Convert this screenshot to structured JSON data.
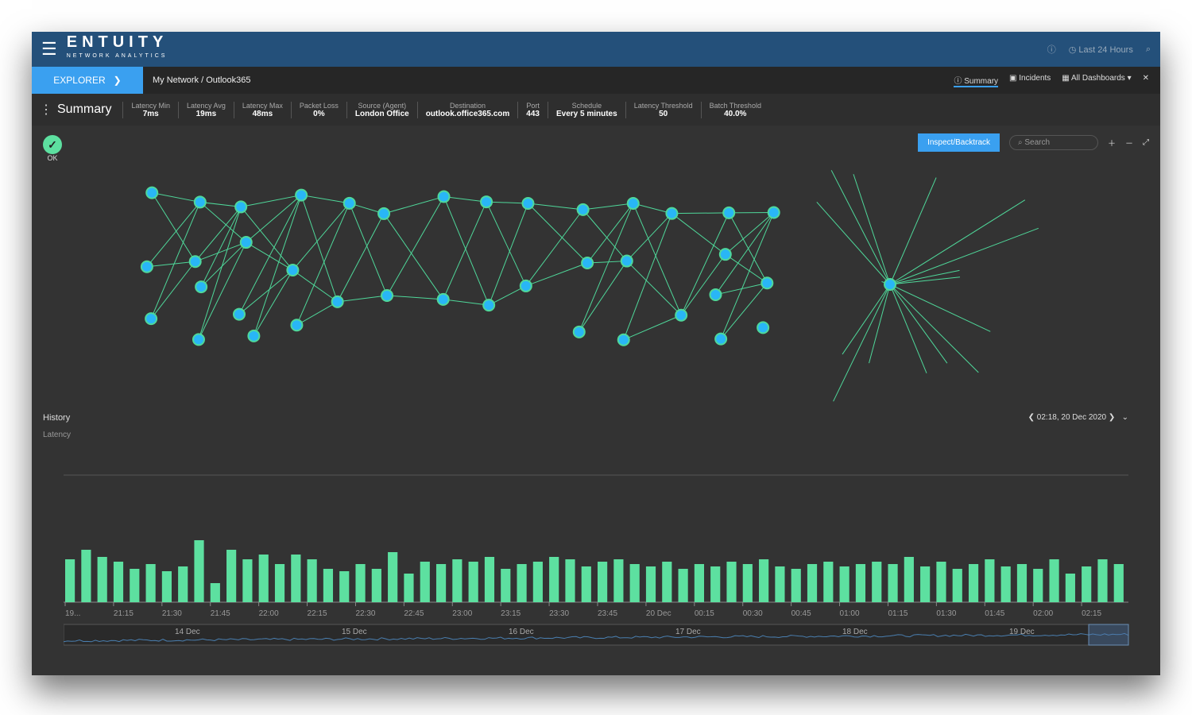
{
  "app": {
    "logo": "ENTUITY",
    "logo_sub": "NETWORK ANALYTICS",
    "time_range": "Last 24 Hours"
  },
  "nav": {
    "explorer": "EXPLORER",
    "breadcrumb": [
      "My Network",
      "Outlook365"
    ],
    "tabs": [
      {
        "label": "Summary",
        "active": true
      },
      {
        "label": "Incidents"
      },
      {
        "label": "All Dashboards"
      }
    ]
  },
  "summary": {
    "title": "Summary",
    "status": "OK",
    "stats": [
      {
        "label": "Latency Min",
        "value": "7ms"
      },
      {
        "label": "Latency Avg",
        "value": "19ms"
      },
      {
        "label": "Latency Max",
        "value": "48ms"
      },
      {
        "label": "Packet Loss",
        "value": "0%"
      },
      {
        "label": "Source (Agent)",
        "value": "London Office"
      },
      {
        "label": "Destination",
        "value": "outlook.office365.com"
      },
      {
        "label": "Port",
        "value": "443"
      },
      {
        "label": "Schedule",
        "value": "Every 5 minutes"
      },
      {
        "label": "Latency Threshold",
        "value": "50"
      },
      {
        "label": "Batch Threshold",
        "value": "40.0%"
      }
    ]
  },
  "toolbar": {
    "action": "Inspect/Backtrack",
    "search_placeholder": "Search"
  },
  "datenav": {
    "current": "02:18, 20 Dec 2020"
  },
  "history": {
    "label": "History"
  },
  "colors": {
    "accent": "#3aa0f0",
    "header": "#24507a",
    "bar": "#5de0a0",
    "node": "#29b6f6"
  },
  "chart_data": {
    "type": "bar",
    "ylabel": "Latency",
    "tick_labels": [
      "19...",
      "21:15",
      "21:30",
      "21:45",
      "22:00",
      "22:15",
      "22:30",
      "22:45",
      "23:00",
      "23:15",
      "23:30",
      "23:45",
      "20 Dec",
      "00:15",
      "00:30",
      "00:45",
      "01:00",
      "01:15",
      "01:30",
      "01:45",
      "02:00",
      "02:15"
    ],
    "values": [
      18,
      22,
      19,
      17,
      14,
      16,
      13,
      15,
      26,
      8,
      22,
      18,
      20,
      16,
      20,
      18,
      14,
      13,
      16,
      14,
      21,
      12,
      17,
      16,
      18,
      17,
      19,
      14,
      16,
      17,
      19,
      18,
      15,
      17,
      18,
      16,
      15,
      17,
      14,
      16,
      15,
      17,
      16,
      18,
      15,
      14,
      16,
      17,
      15,
      16,
      17,
      16,
      19,
      15,
      17,
      14,
      16,
      18,
      15,
      16,
      14,
      18,
      12,
      15,
      18,
      16
    ],
    "navigator_labels": [
      "14 Dec",
      "15 Dec",
      "16 Dec",
      "17 Dec",
      "18 Dec",
      "19 Dec"
    ]
  }
}
